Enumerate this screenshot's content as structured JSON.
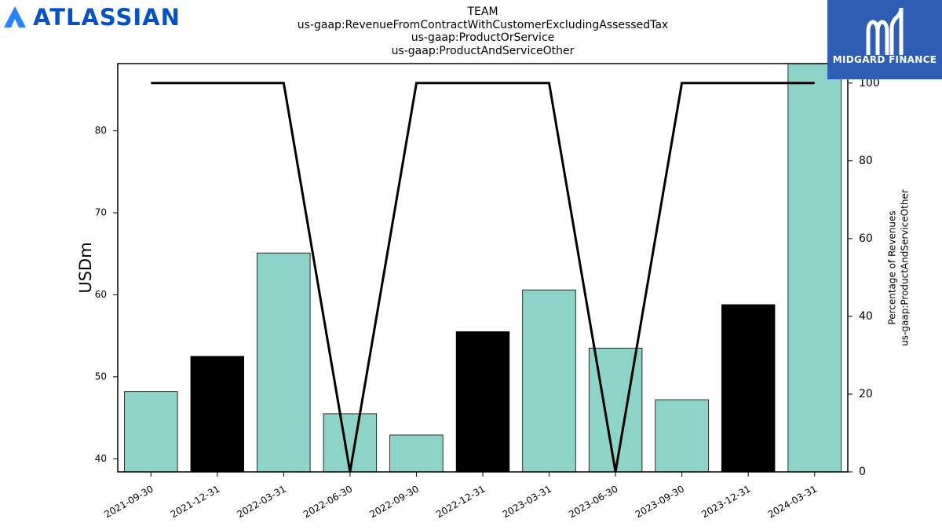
{
  "brand_left": {
    "name": "ATLASSIAN",
    "color": "#0052CC",
    "icon": "atlassian-logo-icon"
  },
  "brand_right": {
    "name": "MIDGARD FINANCE",
    "color": "#2f5db4",
    "icon": "midgard-m-logo-icon"
  },
  "chart_data": {
    "type": "bar",
    "title": [
      "TEAM",
      "us-gaap:RevenueFromContractWithCustomerExcludingAssessedTax",
      "us-gaap:ProductOrService",
      "us-gaap:ProductAndServiceOther"
    ],
    "categories": [
      "2021-09-30",
      "2021-12-31",
      "2022-03-31",
      "2022-06-30",
      "2022-09-30",
      "2022-12-31",
      "2023-03-31",
      "2023-06-30",
      "2023-09-30",
      "2023-12-31",
      "2024-03-31"
    ],
    "bars": {
      "values": [
        48.2,
        52.5,
        65.1,
        45.5,
        42.9,
        55.5,
        60.6,
        53.5,
        47.2,
        58.8,
        89.5
      ],
      "colors": [
        "#8dd3c7",
        "#000000",
        "#8dd3c7",
        "#8dd3c7",
        "#8dd3c7",
        "#000000",
        "#8dd3c7",
        "#8dd3c7",
        "#8dd3c7",
        "#000000",
        "#8dd3c7"
      ]
    },
    "line": {
      "values": [
        100,
        100,
        100,
        0,
        100,
        100,
        100,
        0,
        100,
        100,
        100
      ],
      "color": "#000000"
    },
    "ylabel": "USDm",
    "ylim": [
      38.4,
      88.2
    ],
    "yticks": [
      40,
      50,
      60,
      70,
      80
    ],
    "y2label": [
      "Percentage of Revenues",
      "us-gaap:ProductAndServiceOther"
    ],
    "y2lim": [
      0,
      105
    ],
    "y2ticks": [
      0,
      20,
      40,
      60,
      80,
      100
    ]
  }
}
